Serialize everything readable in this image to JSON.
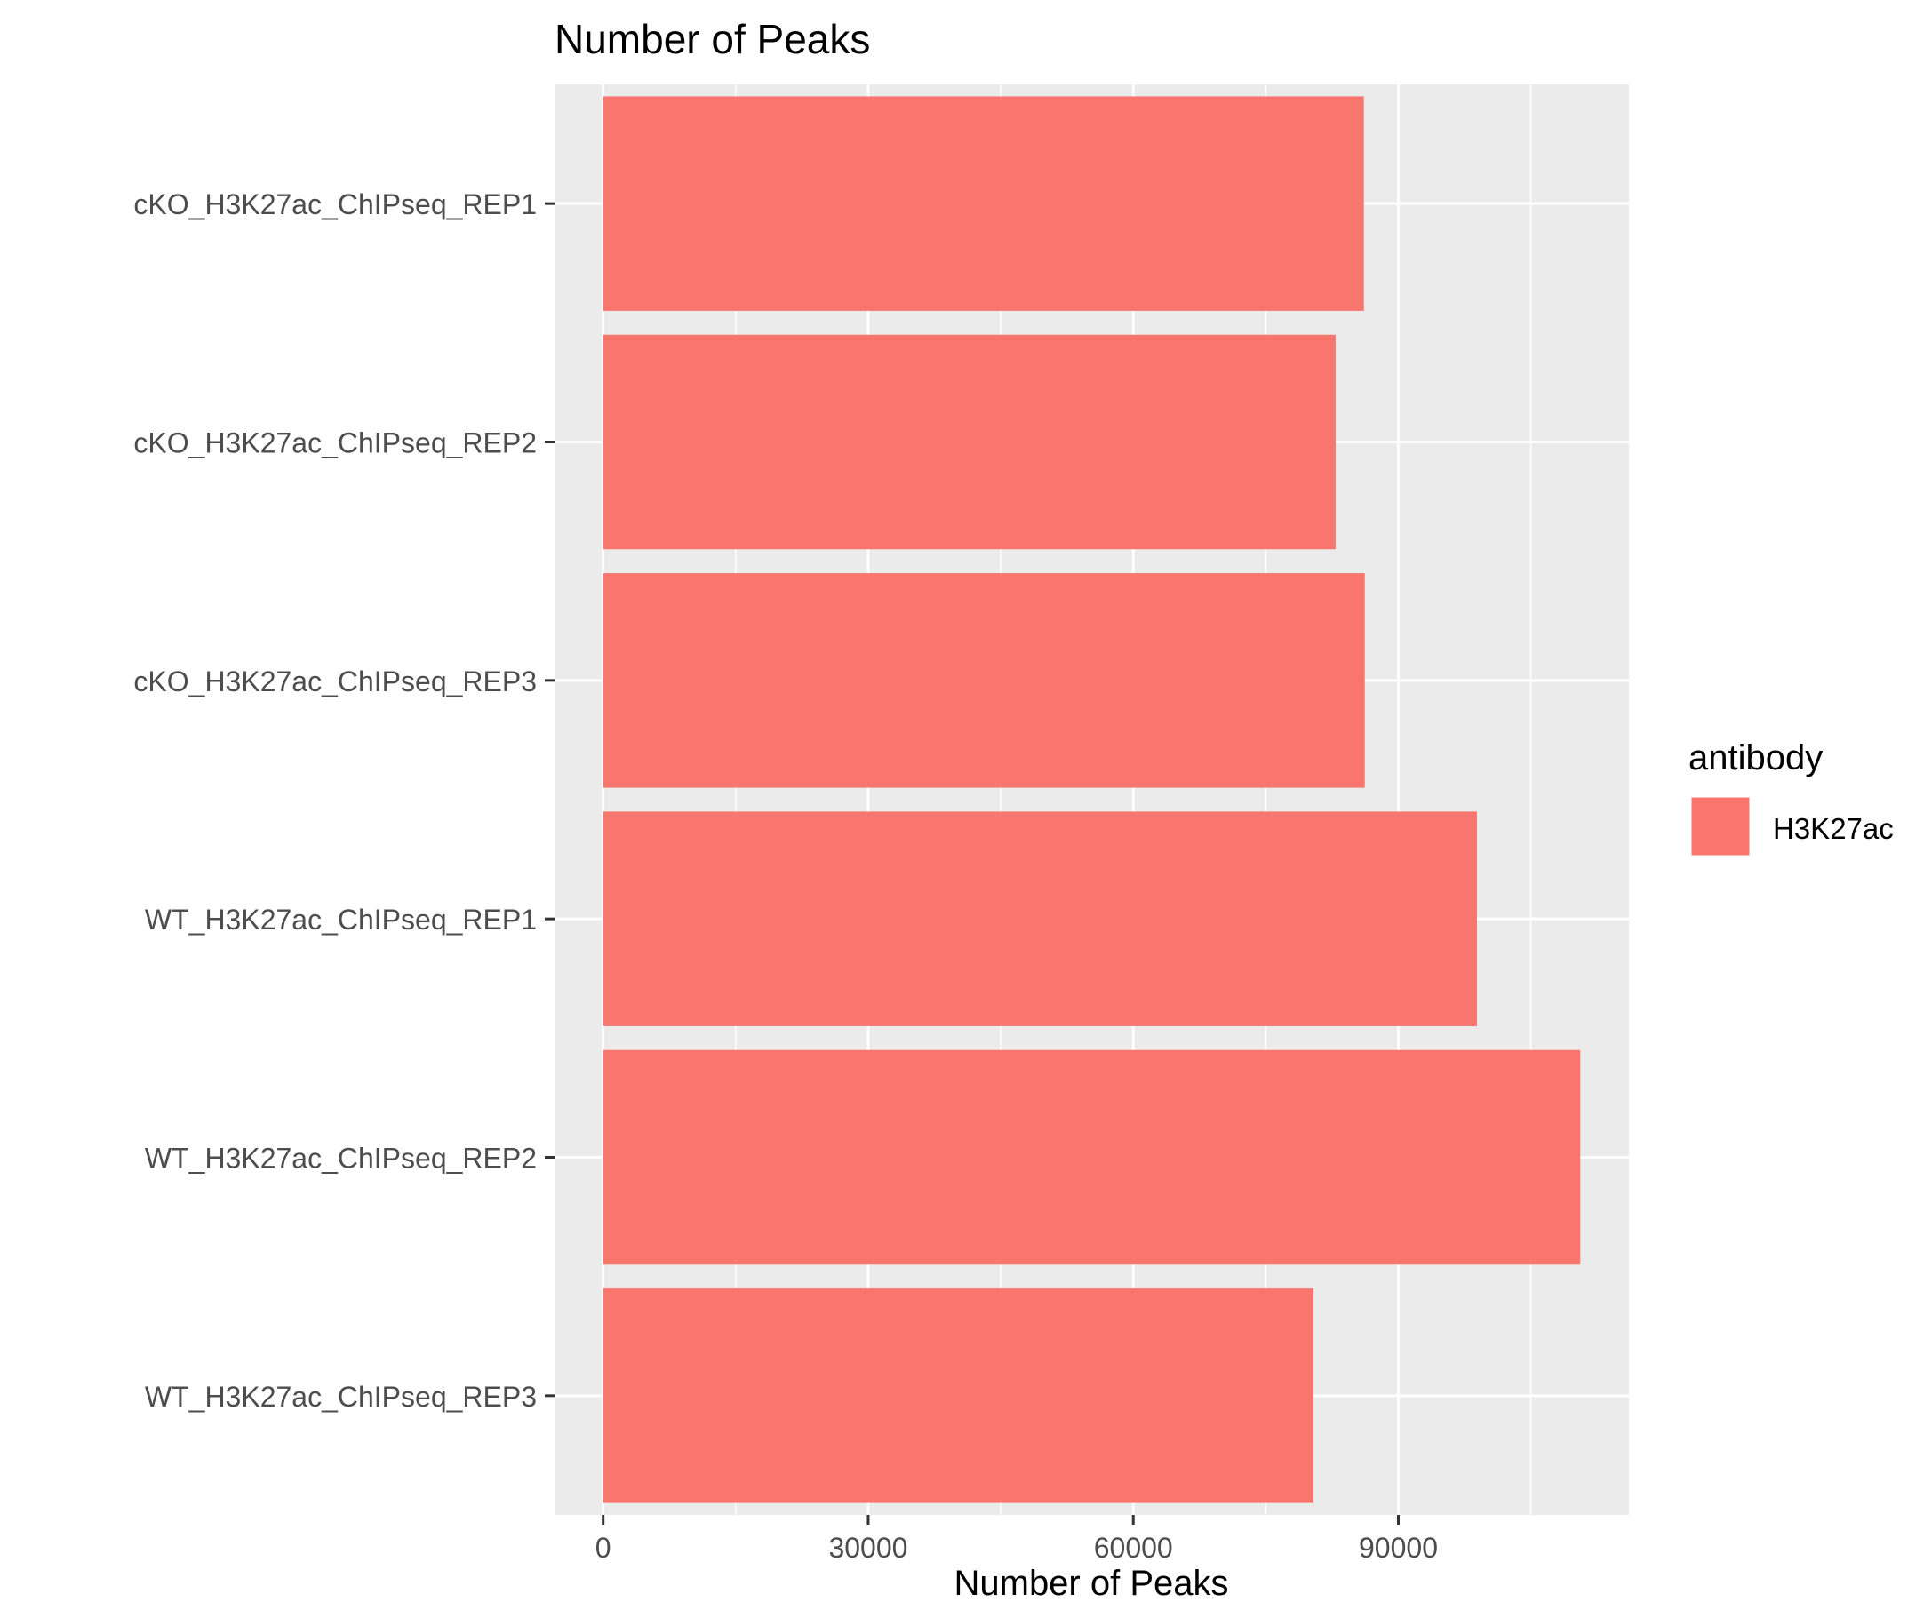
{
  "chart_data": {
    "type": "bar",
    "orientation": "horizontal",
    "title": "Number of Peaks",
    "xlabel": "Number of Peaks",
    "ylabel": "",
    "categories": [
      "cKO_H3K27ac_ChIPseq_REP1",
      "cKO_H3K27ac_ChIPseq_REP2",
      "cKO_H3K27ac_ChIPseq_REP3",
      "WT_H3K27ac_ChIPseq_REP1",
      "WT_H3K27ac_ChIPseq_REP2",
      "WT_H3K27ac_ChIPseq_REP3"
    ],
    "series": [
      {
        "name": "H3K27ac",
        "color": "#F8766D",
        "values": [
          86100,
          82900,
          86200,
          98900,
          110600,
          80400
        ]
      }
    ],
    "xlim": [
      -5500,
      116100
    ],
    "xticks": [
      0,
      30000,
      60000,
      90000
    ],
    "xtick_labels": [
      "0",
      "30000",
      "60000",
      "90000"
    ],
    "grid": true,
    "panel_background": "#EBEBEB",
    "legend": {
      "title": "antibody",
      "position": "right",
      "entries": [
        "H3K27ac"
      ]
    }
  }
}
